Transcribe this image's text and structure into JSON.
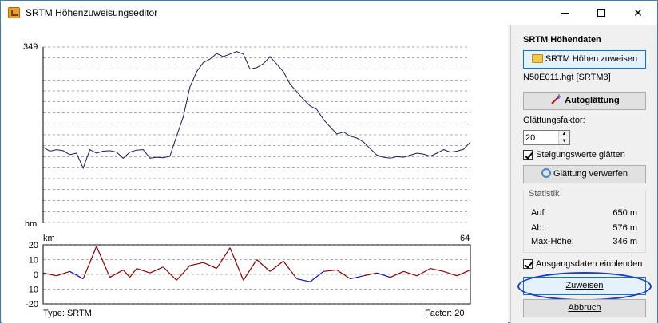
{
  "window": {
    "title": "SRTM Höhenzuweisungseditor",
    "close_glyph": "✕"
  },
  "chart": {
    "y_top_label": "349",
    "y_bottom_label": "hm",
    "x_left_label": "km",
    "x_right_label": "64",
    "slope_ticks": [
      "20",
      "10",
      "0",
      "-10",
      "-20"
    ],
    "type_label": "Type: SRTM",
    "factor_label": "Factor: 20",
    "line_color": "#1a1a5a",
    "slope_pos_color": "#8b0000",
    "slope_neg_color": "#1010c0"
  },
  "chart_data": {
    "type": "line",
    "elevation_km": [
      0,
      1,
      2,
      3,
      4,
      5,
      6,
      7,
      8,
      9,
      10,
      11,
      12,
      13,
      14,
      15,
      16,
      17,
      18,
      19,
      20,
      21,
      22,
      23,
      24,
      25,
      26,
      27,
      28,
      29,
      30,
      31,
      32,
      33,
      34,
      35,
      36,
      37,
      38,
      39,
      40,
      41,
      42,
      43,
      44,
      45,
      46,
      47,
      48,
      49,
      50,
      51,
      52,
      53,
      54,
      55,
      56,
      57,
      58,
      59,
      60,
      61,
      62,
      63,
      64
    ],
    "elevation": [
      150,
      142,
      145,
      143,
      135,
      138,
      108,
      145,
      138,
      142,
      143,
      140,
      128,
      140,
      144,
      145,
      128,
      130,
      129,
      132,
      172,
      210,
      270,
      300,
      318,
      325,
      336,
      330,
      335,
      340,
      335,
      305,
      308,
      316,
      330,
      315,
      300,
      275,
      260,
      245,
      232,
      225,
      205,
      190,
      176,
      180,
      172,
      168,
      160,
      147,
      134,
      130,
      128,
      131,
      130,
      134,
      138,
      136,
      132,
      138,
      145,
      140,
      142,
      146,
      160
    ],
    "slope_x": [
      0,
      2,
      4,
      6,
      8,
      10,
      12,
      13,
      14,
      16,
      18,
      20,
      22,
      24,
      26,
      28,
      30,
      32,
      34,
      36,
      38,
      40,
      42,
      44,
      46,
      48,
      50,
      52,
      54,
      56,
      58,
      60,
      62,
      64
    ],
    "slope": [
      1,
      -1,
      2,
      -3,
      19,
      -2,
      3,
      -2,
      4,
      1,
      5,
      -4,
      6,
      8,
      4,
      18,
      -4,
      10,
      2,
      9,
      -3,
      -5,
      2,
      3,
      -3,
      -1,
      1,
      -2,
      2,
      -1,
      4,
      2,
      -1,
      3
    ],
    "ylim": [
      0,
      349
    ],
    "slope_ylim": [
      -20,
      20
    ]
  },
  "side": {
    "heading": "SRTM Höhendaten",
    "assign_button": "SRTM Höhen zuweisen",
    "file_label": "N50E011.hgt [SRTM3]",
    "autosmooth_button": "Autoglättung",
    "factor_label": "Glättungsfaktor:",
    "factor_value": "20",
    "smooth_slope_label": "Steigungswerte glätten",
    "discard_button": "Glättung verwerfen",
    "stats_title": "Statistik",
    "stats": [
      {
        "key": "Auf:",
        "value": "650 m"
      },
      {
        "key": "Ab:",
        "value": "576 m"
      },
      {
        "key": "Max-Höhe:",
        "value": "346 m"
      }
    ],
    "show_source_label": "Ausgangsdaten einblenden",
    "apply_button": "Zuweisen",
    "cancel_button": "Abbruch"
  }
}
